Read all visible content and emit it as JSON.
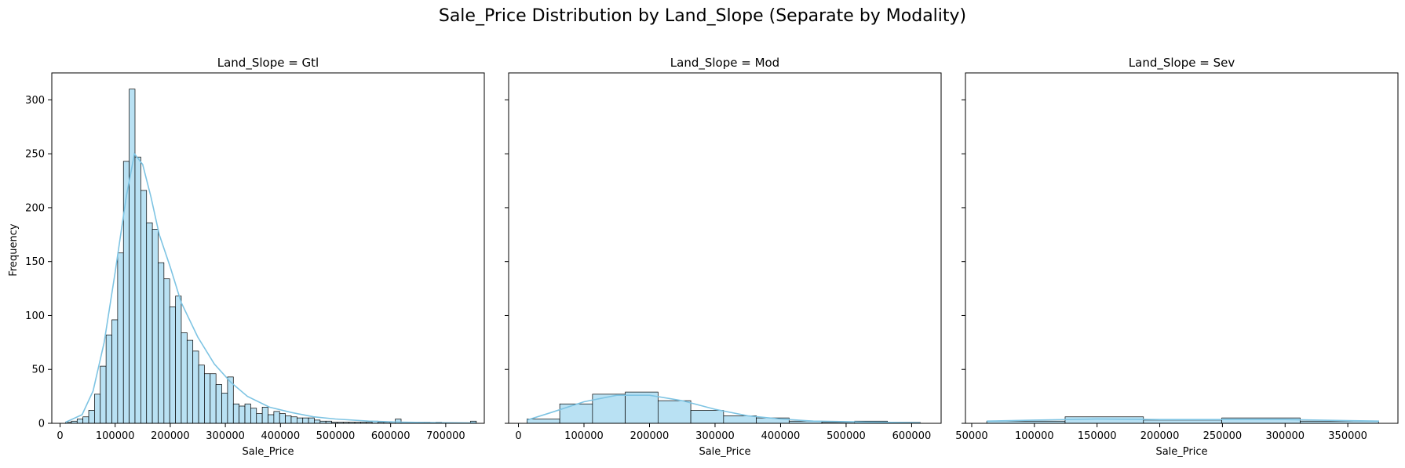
{
  "figure": {
    "suptitle": "Sale_Price Distribution by Land_Slope (Separate by Modality)",
    "ylabel": "Frequency",
    "colors": {
      "bar_fill": "#b9e1f3",
      "bar_edge": "#000000",
      "kde": "#7ec4e3",
      "axes": "#000000"
    }
  },
  "chart_data": [
    {
      "type": "histogram",
      "title": "Land_Slope = Gtl",
      "xlabel": "Sale_Price",
      "ylabel": "Frequency",
      "xlim": [
        -15000,
        770000
      ],
      "ylim": [
        0,
        325
      ],
      "xticks": [
        0,
        100000,
        200000,
        300000,
        400000,
        500000,
        600000,
        700000
      ],
      "yticks": [
        0,
        50,
        100,
        150,
        200,
        250,
        300
      ],
      "bin_start": 10000,
      "bin_width": 10500,
      "counts": [
        1,
        2,
        4,
        6,
        12,
        27,
        53,
        82,
        96,
        158,
        243,
        310,
        247,
        216,
        186,
        180,
        149,
        134,
        108,
        118,
        84,
        77,
        67,
        54,
        46,
        46,
        36,
        28,
        43,
        18,
        16,
        18,
        14,
        9,
        15,
        8,
        11,
        9,
        7,
        6,
        5,
        5,
        5,
        3,
        2,
        2,
        1,
        1,
        1,
        1,
        1,
        1,
        1,
        2,
        1,
        1,
        1,
        4,
        1,
        1,
        1,
        1,
        1,
        0,
        1,
        0,
        0,
        0,
        0,
        0,
        2
      ],
      "kde": {
        "x": [
          10000,
          40000,
          60000,
          80000,
          100000,
          120000,
          135000,
          150000,
          165000,
          180000,
          200000,
          220000,
          250000,
          280000,
          310000,
          340000,
          380000,
          420000,
          460000,
          500000,
          560000,
          620000,
          700000,
          755000
        ],
        "y": [
          1,
          8,
          30,
          75,
          140,
          210,
          250,
          240,
          210,
          175,
          145,
          112,
          80,
          55,
          38,
          25,
          15,
          10,
          6,
          4,
          2,
          1,
          0.5,
          0.3
        ]
      },
      "grid": false
    },
    {
      "type": "histogram",
      "title": "Land_Slope = Mod",
      "xlabel": "Sale_Price",
      "ylabel": "Frequency",
      "xlim": [
        -15000,
        645000
      ],
      "ylim": [
        0,
        325
      ],
      "xticks": [
        0,
        100000,
        200000,
        300000,
        400000,
        500000,
        600000
      ],
      "yticks": [
        0,
        50,
        100,
        150,
        200,
        250,
        300
      ],
      "bin_start": 13000,
      "bin_width": 50000,
      "counts": [
        4,
        18,
        27,
        29,
        21,
        12,
        7,
        5,
        2,
        1,
        2,
        1
      ],
      "kde": {
        "x": [
          13000,
          50000,
          100000,
          150000,
          200000,
          250000,
          300000,
          350000,
          400000,
          450000,
          500000,
          550000,
          613000
        ],
        "y": [
          3,
          10,
          20,
          26,
          26,
          21,
          13,
          7,
          4,
          2,
          1.5,
          1,
          0.5
        ]
      },
      "grid": false
    },
    {
      "type": "histogram",
      "title": "Land_Slope = Sev",
      "xlabel": "Sale_Price",
      "ylabel": "Frequency",
      "xlim": [
        45000,
        390000
      ],
      "ylim": [
        0,
        325
      ],
      "xticks": [
        50000,
        100000,
        150000,
        200000,
        250000,
        300000,
        350000
      ],
      "yticks": [
        0,
        50,
        100,
        150,
        200,
        250,
        300
      ],
      "bin_start": 62000,
      "bin_width": 62500,
      "counts": [
        2,
        6,
        3,
        5,
        2
      ],
      "kde": {
        "x": [
          62000,
          100000,
          150000,
          200000,
          250000,
          300000,
          350000,
          375000
        ],
        "y": [
          2,
          3,
          4,
          3.5,
          3.5,
          3.5,
          2.5,
          2
        ]
      },
      "grid": false
    }
  ]
}
